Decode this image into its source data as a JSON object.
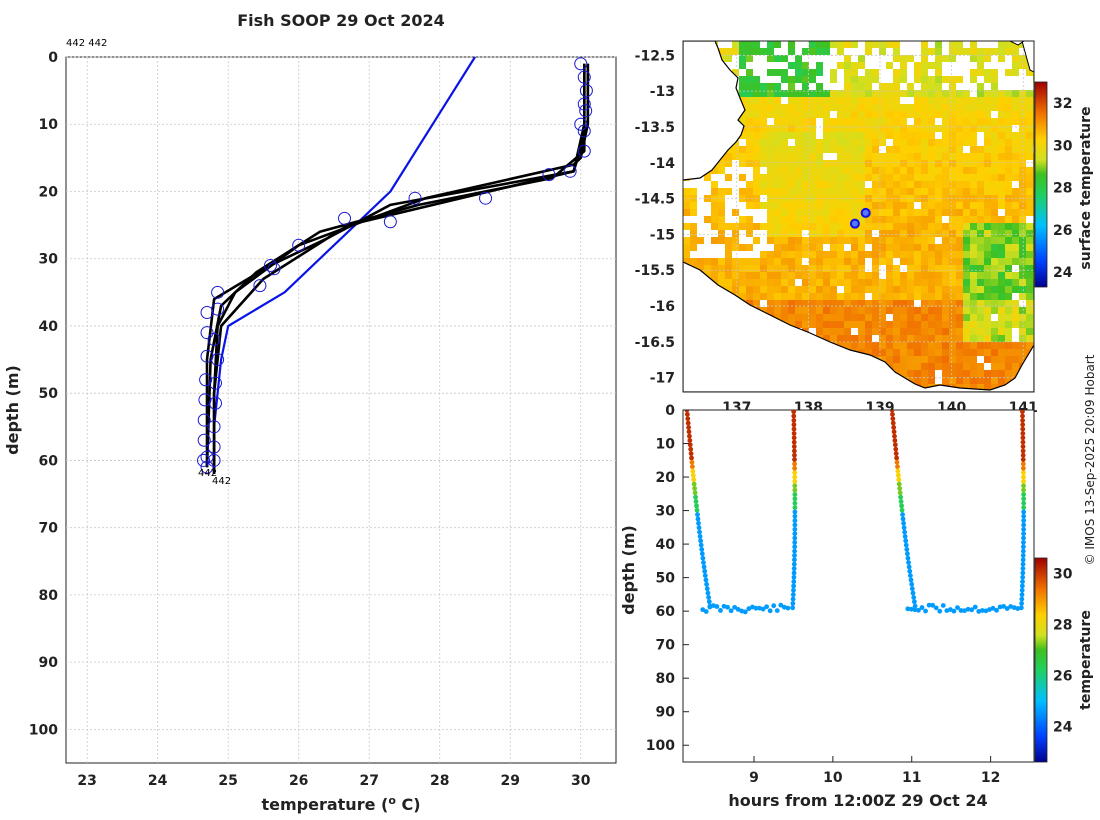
{
  "title": "Fish SOOP 29 Oct 2024",
  "copyright": "© IMOS 13-Sep-2025 20:09 Hobart",
  "colors": {
    "profile": "#000000",
    "climatology": "#0a14e6",
    "marker": "#1a1ad0",
    "land": "#ffffff",
    "coast": "#000000"
  },
  "chart_data": [
    {
      "type": "line",
      "id": "profile",
      "title": "Fish SOOP 29 Oct 2024",
      "xlabel": "temperature (",
      "xlabel_sup": "o",
      "xlabel_end": " C)",
      "ylabel": "depth (m)",
      "xlim": [
        22.7,
        30.5
      ],
      "ylim": [
        0,
        105
      ],
      "y_inverted": true,
      "xticks": [
        23,
        24,
        25,
        26,
        27,
        28,
        29,
        30
      ],
      "yticks": [
        0,
        10,
        20,
        30,
        40,
        50,
        60,
        70,
        80,
        90,
        100
      ],
      "annotations": {
        "top_left": "442 442",
        "end_a": "442",
        "end_b": "442"
      },
      "series": [
        {
          "name": "climatology",
          "color": "#0a14e6",
          "x": [
            28.5,
            27.9,
            27.3,
            26.5,
            25.8,
            25.0,
            24.9,
            24.8,
            24.8
          ],
          "y": [
            0,
            10,
            20,
            28,
            35,
            40,
            45,
            55,
            62
          ]
        },
        {
          "name": "down1",
          "color": "#000000",
          "x": [
            30.1,
            30.1,
            30.0,
            29.9,
            27.8,
            26.0,
            25.1,
            24.85,
            24.8,
            24.8
          ],
          "y": [
            1,
            10,
            15,
            16,
            21,
            28,
            35,
            40,
            50,
            62
          ]
        },
        {
          "name": "up1",
          "color": "#000000",
          "x": [
            24.8,
            24.8,
            24.9,
            25.5,
            26.7,
            28.7,
            29.9,
            30.1,
            30.1
          ],
          "y": [
            62,
            50,
            40,
            33,
            25,
            20,
            17,
            10,
            1
          ]
        },
        {
          "name": "down2",
          "color": "#000000",
          "x": [
            30.05,
            30.05,
            29.9,
            27.3,
            26.4,
            25.6,
            24.8,
            24.7,
            24.7
          ],
          "y": [
            1,
            10,
            17,
            22,
            27,
            31,
            36,
            45,
            61
          ]
        },
        {
          "name": "up2",
          "color": "#000000",
          "x": [
            24.7,
            24.75,
            24.9,
            25.4,
            26.3,
            27.7,
            29.6,
            30.05,
            30.05
          ],
          "y": [
            61,
            45,
            37,
            32,
            26,
            22,
            18,
            14,
            1
          ]
        }
      ],
      "markers": [
        {
          "x": 30.0,
          "y": 1
        },
        {
          "x": 30.05,
          "y": 3
        },
        {
          "x": 30.08,
          "y": 5
        },
        {
          "x": 30.05,
          "y": 7
        },
        {
          "x": 30.07,
          "y": 8
        },
        {
          "x": 30.0,
          "y": 10
        },
        {
          "x": 30.05,
          "y": 11
        },
        {
          "x": 30.05,
          "y": 14
        },
        {
          "x": 29.85,
          "y": 17
        },
        {
          "x": 29.55,
          "y": 17.5
        },
        {
          "x": 28.65,
          "y": 21
        },
        {
          "x": 27.65,
          "y": 21
        },
        {
          "x": 27.3,
          "y": 24.5
        },
        {
          "x": 26.65,
          "y": 24
        },
        {
          "x": 26.0,
          "y": 28
        },
        {
          "x": 25.6,
          "y": 31
        },
        {
          "x": 25.65,
          "y": 31.5
        },
        {
          "x": 25.45,
          "y": 34
        },
        {
          "x": 24.85,
          "y": 35
        },
        {
          "x": 24.85,
          "y": 37.5
        },
        {
          "x": 24.7,
          "y": 38
        },
        {
          "x": 24.7,
          "y": 41
        },
        {
          "x": 24.8,
          "y": 42
        },
        {
          "x": 24.7,
          "y": 44.5
        },
        {
          "x": 24.85,
          "y": 45
        },
        {
          "x": 24.68,
          "y": 48
        },
        {
          "x": 24.82,
          "y": 48.5
        },
        {
          "x": 24.67,
          "y": 51
        },
        {
          "x": 24.82,
          "y": 51.5
        },
        {
          "x": 24.66,
          "y": 54
        },
        {
          "x": 24.8,
          "y": 55
        },
        {
          "x": 24.66,
          "y": 57
        },
        {
          "x": 24.8,
          "y": 58
        },
        {
          "x": 24.7,
          "y": 59.5
        },
        {
          "x": 24.8,
          "y": 60
        },
        {
          "x": 24.65,
          "y": 60
        },
        {
          "x": 24.7,
          "y": 61
        }
      ]
    },
    {
      "type": "heatmap",
      "id": "map",
      "colorbar_label": "surface temperature",
      "colorbar_ticks": [
        24,
        26,
        28,
        30,
        32
      ],
      "colorbar_range": [
        23.3,
        33.0
      ],
      "ylim": [
        -17.2,
        -12.3
      ],
      "yticks": [
        -12.5,
        -13,
        -13.5,
        -14,
        -14.5,
        -15,
        -15.5,
        -16,
        -16.5,
        -17
      ],
      "xticks": [
        137,
        138,
        139,
        140,
        141
      ],
      "xlim": [
        136.25,
        141.15
      ],
      "points": [
        {
          "lon": 138.8,
          "lat": -14.7
        },
        {
          "lon": 138.65,
          "lat": -14.85
        }
      ]
    },
    {
      "type": "scatter",
      "id": "section",
      "xlabel": "hours from 12:00Z 29 Oct 24",
      "ylabel": "depth (m)",
      "colorbar_label": "temperature",
      "colorbar_ticks": [
        24,
        26,
        28,
        30
      ],
      "colorbar_range": [
        22.6,
        30.6
      ],
      "xlim": [
        8.1,
        12.55
      ],
      "ylim": [
        0,
        105
      ],
      "xticks": [
        9,
        10,
        11,
        12
      ],
      "yticks": [
        0,
        10,
        20,
        30,
        40,
        50,
        60,
        70,
        80,
        90,
        100
      ],
      "casts": [
        {
          "t_start": 8.15,
          "t_bottom": 8.35,
          "t_end": 9.45,
          "t_surface": 9.55
        },
        {
          "t_start": 10.75,
          "t_bottom": 10.95,
          "t_end": 12.35,
          "t_surface": 12.45
        }
      ]
    }
  ]
}
